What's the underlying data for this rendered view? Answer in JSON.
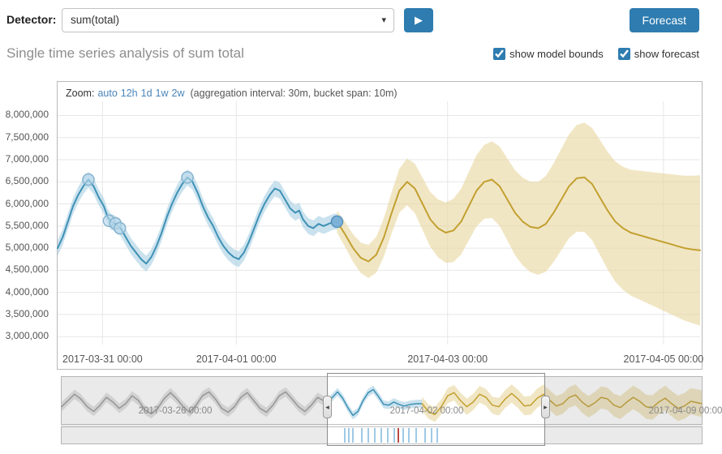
{
  "toolbar": {
    "detector_label": "Detector:",
    "detector_value": "sum(total)",
    "forecast_button": "Forecast"
  },
  "icons": {
    "play": "▶",
    "caret_down": "▾",
    "handle_left": "◂",
    "handle_right": "▸"
  },
  "header": {
    "title": "Single time series analysis of sum total",
    "checkboxes": [
      {
        "label": "show model bounds",
        "checked": true
      },
      {
        "label": "show forecast",
        "checked": true
      }
    ]
  },
  "zoom": {
    "label": "Zoom:",
    "links": [
      "auto",
      "12h",
      "1d",
      "1w",
      "2w"
    ],
    "info": "(aggregation interval: 30m, bucket span: 10m)"
  },
  "chart_data": [
    {
      "id": "main",
      "type": "line",
      "title": "Single time series analysis of sum total",
      "grid": true,
      "y_axis": {
        "min_label": 3000000,
        "max_label": 8000000,
        "tick_step": 500000,
        "domain": [
          2820000,
          8320000
        ]
      },
      "x_ticks": [
        {
          "pos": 0.07,
          "label": "2017-03-31 00:00"
        },
        {
          "pos": 0.278,
          "label": "2017-04-01 00:00"
        },
        {
          "pos": 0.607,
          "label": "2017-04-03 00:00"
        },
        {
          "pos": 0.943,
          "label": "2017-04-05 00:00"
        }
      ],
      "series": [
        {
          "name": "actual",
          "color": "#3e91b5",
          "band_color": "#a7cfe2",
          "band_halfwidth": 180000,
          "points": [
            [
              0.0,
              5000000
            ],
            [
              0.008,
              5250000
            ],
            [
              0.016,
              5600000
            ],
            [
              0.024,
              5950000
            ],
            [
              0.032,
              6200000
            ],
            [
              0.04,
              6400000
            ],
            [
              0.048,
              6550000
            ],
            [
              0.056,
              6400000
            ],
            [
              0.064,
              6150000
            ],
            [
              0.072,
              5950000
            ],
            [
              0.078,
              5700000
            ],
            [
              0.083,
              5600000
            ],
            [
              0.09,
              5550000
            ],
            [
              0.098,
              5450000
            ],
            [
              0.106,
              5250000
            ],
            [
              0.114,
              5050000
            ],
            [
              0.122,
              4900000
            ],
            [
              0.13,
              4750000
            ],
            [
              0.138,
              4650000
            ],
            [
              0.146,
              4800000
            ],
            [
              0.154,
              5050000
            ],
            [
              0.162,
              5350000
            ],
            [
              0.17,
              5700000
            ],
            [
              0.178,
              6000000
            ],
            [
              0.186,
              6250000
            ],
            [
              0.194,
              6450000
            ],
            [
              0.202,
              6600000
            ],
            [
              0.21,
              6500000
            ],
            [
              0.218,
              6250000
            ],
            [
              0.226,
              5950000
            ],
            [
              0.234,
              5700000
            ],
            [
              0.242,
              5500000
            ],
            [
              0.25,
              5250000
            ],
            [
              0.258,
              5050000
            ],
            [
              0.266,
              4900000
            ],
            [
              0.274,
              4800000
            ],
            [
              0.282,
              4750000
            ],
            [
              0.29,
              4900000
            ],
            [
              0.298,
              5150000
            ],
            [
              0.306,
              5450000
            ],
            [
              0.314,
              5750000
            ],
            [
              0.322,
              6000000
            ],
            [
              0.33,
              6200000
            ],
            [
              0.338,
              6350000
            ],
            [
              0.346,
              6300000
            ],
            [
              0.354,
              6100000
            ],
            [
              0.362,
              5900000
            ],
            [
              0.37,
              5800000
            ],
            [
              0.376,
              5850000
            ],
            [
              0.382,
              5650000
            ],
            [
              0.39,
              5500000
            ],
            [
              0.398,
              5450000
            ],
            [
              0.406,
              5550000
            ],
            [
              0.414,
              5500000
            ],
            [
              0.422,
              5550000
            ],
            [
              0.43,
              5600000
            ],
            [
              0.435,
              5600000
            ]
          ]
        },
        {
          "name": "forecast",
          "color": "#c2a030",
          "band_color": "#e7d59c",
          "band_halfwidth_start": 250000,
          "band_halfwidth_end": 1700000,
          "points": [
            [
              0.435,
              5600000
            ],
            [
              0.448,
              5300000
            ],
            [
              0.46,
              5000000
            ],
            [
              0.472,
              4780000
            ],
            [
              0.484,
              4700000
            ],
            [
              0.496,
              4850000
            ],
            [
              0.508,
              5250000
            ],
            [
              0.52,
              5800000
            ],
            [
              0.532,
              6300000
            ],
            [
              0.544,
              6500000
            ],
            [
              0.556,
              6350000
            ],
            [
              0.568,
              6000000
            ],
            [
              0.58,
              5650000
            ],
            [
              0.592,
              5450000
            ],
            [
              0.604,
              5350000
            ],
            [
              0.616,
              5400000
            ],
            [
              0.628,
              5600000
            ],
            [
              0.64,
              5950000
            ],
            [
              0.652,
              6300000
            ],
            [
              0.664,
              6500000
            ],
            [
              0.676,
              6550000
            ],
            [
              0.688,
              6400000
            ],
            [
              0.7,
              6100000
            ],
            [
              0.712,
              5800000
            ],
            [
              0.724,
              5600000
            ],
            [
              0.736,
              5480000
            ],
            [
              0.748,
              5450000
            ],
            [
              0.76,
              5550000
            ],
            [
              0.772,
              5800000
            ],
            [
              0.784,
              6100000
            ],
            [
              0.796,
              6400000
            ],
            [
              0.808,
              6580000
            ],
            [
              0.82,
              6600000
            ],
            [
              0.832,
              6450000
            ],
            [
              0.844,
              6150000
            ],
            [
              0.856,
              5850000
            ],
            [
              0.868,
              5600000
            ],
            [
              0.88,
              5450000
            ],
            [
              0.892,
              5350000
            ],
            [
              0.904,
              5300000
            ],
            [
              0.916,
              5250000
            ],
            [
              0.928,
              5200000
            ],
            [
              0.94,
              5150000
            ],
            [
              0.952,
              5100000
            ],
            [
              0.964,
              5050000
            ],
            [
              0.976,
              5000000
            ],
            [
              0.988,
              4970000
            ],
            [
              1.0,
              4950000
            ]
          ]
        }
      ],
      "anomalies": [
        {
          "x": 0.048,
          "y": 6550000
        },
        {
          "x": 0.08,
          "y": 5620000
        },
        {
          "x": 0.09,
          "y": 5560000
        },
        {
          "x": 0.097,
          "y": 5450000
        },
        {
          "x": 0.202,
          "y": 6600000
        }
      ],
      "forecast_start_marker": {
        "x": 0.435,
        "y": 5600000
      }
    },
    {
      "id": "context",
      "type": "line",
      "y_domain": [
        4300000,
        7300000
      ],
      "selection": {
        "start": 0.415,
        "end": 0.755
      },
      "date_labels": [
        {
          "pos": 0.177,
          "label": "2017-03-26 00:00"
        },
        {
          "pos": 0.57,
          "label": "2017-04-02 00:00"
        },
        {
          "pos": 0.975,
          "label": "2017-04-09 00:00"
        }
      ],
      "series": [
        {
          "name": "history",
          "color": "#9a9a9a",
          "band_color": "#cfcfcf",
          "band_halfwidth": 300000,
          "points": [
            [
              0.0,
              5400000
            ],
            [
              0.01,
              5800000
            ],
            [
              0.02,
              6200000
            ],
            [
              0.03,
              5900000
            ],
            [
              0.04,
              5400000
            ],
            [
              0.05,
              5100000
            ],
            [
              0.06,
              5500000
            ],
            [
              0.07,
              6000000
            ],
            [
              0.08,
              5700000
            ],
            [
              0.09,
              5300000
            ],
            [
              0.1,
              5600000
            ],
            [
              0.11,
              6100000
            ],
            [
              0.12,
              5800000
            ],
            [
              0.13,
              5200000
            ],
            [
              0.14,
              4950000
            ],
            [
              0.15,
              5300000
            ],
            [
              0.16,
              5900000
            ],
            [
              0.17,
              6300000
            ],
            [
              0.18,
              5900000
            ],
            [
              0.19,
              5400000
            ],
            [
              0.2,
              5050000
            ],
            [
              0.21,
              5500000
            ],
            [
              0.22,
              6100000
            ],
            [
              0.23,
              6350000
            ],
            [
              0.24,
              5900000
            ],
            [
              0.25,
              5300000
            ],
            [
              0.26,
              5050000
            ],
            [
              0.27,
              5400000
            ],
            [
              0.28,
              6000000
            ],
            [
              0.29,
              6300000
            ],
            [
              0.3,
              5800000
            ],
            [
              0.31,
              5300000
            ],
            [
              0.32,
              5050000
            ],
            [
              0.33,
              5500000
            ],
            [
              0.34,
              6100000
            ],
            [
              0.35,
              6350000
            ],
            [
              0.36,
              5900000
            ],
            [
              0.37,
              5400000
            ],
            [
              0.38,
              5100000
            ],
            [
              0.39,
              5500000
            ],
            [
              0.4,
              6000000
            ],
            [
              0.415,
              5650000
            ]
          ]
        },
        {
          "name": "actual",
          "color": "#3e91b5",
          "band_color": "#a7cfe2",
          "band_halfwidth": 250000,
          "points": [
            [
              0.415,
              5650000
            ],
            [
              0.423,
              6000000
            ],
            [
              0.431,
              6350000
            ],
            [
              0.439,
              5950000
            ],
            [
              0.447,
              5350000
            ],
            [
              0.455,
              4850000
            ],
            [
              0.463,
              5100000
            ],
            [
              0.471,
              5800000
            ],
            [
              0.479,
              6300000
            ],
            [
              0.487,
              6500000
            ],
            [
              0.495,
              6050000
            ],
            [
              0.503,
              5550000
            ],
            [
              0.511,
              5500000
            ],
            [
              0.519,
              5700000
            ],
            [
              0.527,
              5550000
            ],
            [
              0.535,
              5450000
            ],
            [
              0.545,
              5550000
            ],
            [
              0.555,
              5600000
            ],
            [
              0.563,
              5600000
            ]
          ]
        },
        {
          "name": "forecast",
          "color": "#c2a030",
          "band_color": "#e7d59c",
          "band_halfwidth_start": 450000,
          "band_halfwidth_end": 850000,
          "points": [
            [
              0.563,
              5600000
            ],
            [
              0.573,
              5100000
            ],
            [
              0.583,
              4900000
            ],
            [
              0.593,
              5400000
            ],
            [
              0.603,
              6100000
            ],
            [
              0.613,
              6300000
            ],
            [
              0.623,
              5800000
            ],
            [
              0.633,
              5400000
            ],
            [
              0.643,
              5700000
            ],
            [
              0.653,
              6200000
            ],
            [
              0.663,
              6000000
            ],
            [
              0.673,
              5500000
            ],
            [
              0.683,
              5400000
            ],
            [
              0.693,
              5900000
            ],
            [
              0.703,
              6250000
            ],
            [
              0.713,
              5900000
            ],
            [
              0.723,
              5450000
            ],
            [
              0.733,
              5500000
            ],
            [
              0.743,
              5950000
            ],
            [
              0.753,
              6200000
            ],
            [
              0.763,
              5800000
            ],
            [
              0.773,
              5450000
            ],
            [
              0.783,
              5600000
            ],
            [
              0.793,
              6000000
            ],
            [
              0.803,
              6150000
            ],
            [
              0.813,
              5700000
            ],
            [
              0.823,
              5400000
            ],
            [
              0.833,
              5650000
            ],
            [
              0.843,
              6000000
            ],
            [
              0.853,
              5900000
            ],
            [
              0.863,
              5500000
            ],
            [
              0.873,
              5350000
            ],
            [
              0.883,
              5700000
            ],
            [
              0.893,
              6000000
            ],
            [
              0.903,
              5750000
            ],
            [
              0.913,
              5400000
            ],
            [
              0.923,
              5350000
            ],
            [
              0.933,
              5700000
            ],
            [
              0.943,
              5950000
            ],
            [
              0.953,
              5600000
            ],
            [
              0.963,
              5300000
            ],
            [
              0.973,
              5450000
            ],
            [
              0.983,
              5750000
            ],
            [
              1.0,
              5600000
            ]
          ]
        }
      ],
      "swimlane": {
        "colors": {
          "low": "#9fc9e6",
          "critical": "#b94a44"
        },
        "ticks": [
          {
            "pos": 0.44,
            "severity": "low"
          },
          {
            "pos": 0.446,
            "severity": "low"
          },
          {
            "pos": 0.453,
            "severity": "low"
          },
          {
            "pos": 0.466,
            "severity": "low"
          },
          {
            "pos": 0.477,
            "severity": "low"
          },
          {
            "pos": 0.487,
            "severity": "low"
          },
          {
            "pos": 0.497,
            "severity": "low"
          },
          {
            "pos": 0.507,
            "severity": "low"
          },
          {
            "pos": 0.517,
            "severity": "low"
          },
          {
            "pos": 0.523,
            "severity": "critical"
          },
          {
            "pos": 0.531,
            "severity": "low"
          },
          {
            "pos": 0.54,
            "severity": "low"
          },
          {
            "pos": 0.551,
            "severity": "low"
          },
          {
            "pos": 0.565,
            "severity": "low"
          },
          {
            "pos": 0.575,
            "severity": "low"
          },
          {
            "pos": 0.584,
            "severity": "low"
          }
        ]
      }
    }
  ]
}
